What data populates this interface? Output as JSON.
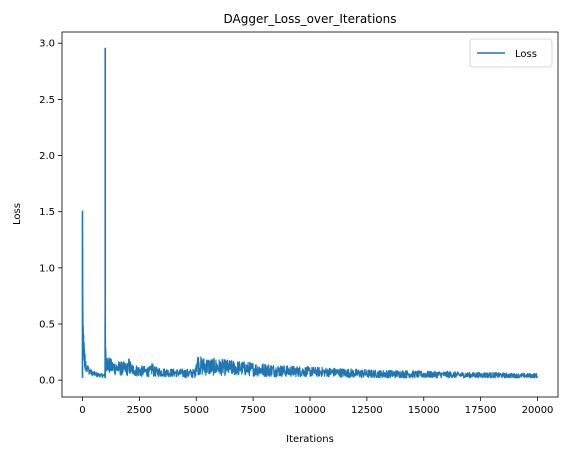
{
  "chart_data": {
    "type": "line",
    "title": "DAgger_Loss_over_Iterations",
    "xlabel": "Iterations",
    "ylabel": "Loss",
    "xlim": [
      -900,
      20900
    ],
    "ylim": [
      -0.15,
      3.1
    ],
    "xticks": [
      0,
      2500,
      5000,
      7500,
      10000,
      12500,
      15000,
      17500,
      20000
    ],
    "xtick_labels": [
      "0",
      "2500",
      "5000",
      "7500",
      "10000",
      "12500",
      "15000",
      "17500",
      "20000"
    ],
    "yticks": [
      0.0,
      0.5,
      1.0,
      1.5,
      2.0,
      2.5,
      3.0
    ],
    "ytick_labels": [
      "0.0",
      "0.5",
      "1.0",
      "1.5",
      "2.0",
      "2.5",
      "3.0"
    ],
    "grid": false,
    "legend_position": "top-right",
    "series": [
      {
        "name": "Loss",
        "color": "#1f77b4",
        "envelope": {
          "x": [
            0,
            10,
            30,
            60,
            100,
            200,
            400,
            600,
            800,
            990,
            1000,
            1010,
            1030,
            1100,
            1300,
            1600,
            2000,
            2050,
            2150,
            2500,
            3000,
            3050,
            3150,
            3500,
            4000,
            4500,
            4950,
            5000,
            5050,
            5200,
            6000,
            7000,
            8000,
            9000,
            10000,
            11000,
            12000,
            13000,
            14000,
            15000,
            16000,
            17000,
            18000,
            19000,
            20000
          ],
          "upper": [
            1.51,
            0.93,
            0.55,
            0.38,
            0.25,
            0.15,
            0.09,
            0.07,
            0.06,
            0.06,
            2.96,
            0.37,
            0.28,
            0.22,
            0.18,
            0.17,
            0.16,
            0.21,
            0.15,
            0.13,
            0.12,
            0.18,
            0.12,
            0.11,
            0.1,
            0.1,
            0.1,
            0.26,
            0.24,
            0.21,
            0.19,
            0.17,
            0.15,
            0.13,
            0.12,
            0.11,
            0.1,
            0.09,
            0.09,
            0.08,
            0.08,
            0.07,
            0.07,
            0.06,
            0.06
          ],
          "lower": [
            0.9,
            0.3,
            0.2,
            0.15,
            0.1,
            0.06,
            0.04,
            0.03,
            0.025,
            0.02,
            0.3,
            0.12,
            0.08,
            0.06,
            0.05,
            0.04,
            0.04,
            0.04,
            0.04,
            0.03,
            0.03,
            0.04,
            0.03,
            0.03,
            0.03,
            0.02,
            0.02,
            0.06,
            0.05,
            0.04,
            0.04,
            0.04,
            0.03,
            0.03,
            0.03,
            0.03,
            0.02,
            0.02,
            0.02,
            0.02,
            0.02,
            0.02,
            0.02,
            0.02,
            0.02
          ]
        }
      }
    ]
  }
}
